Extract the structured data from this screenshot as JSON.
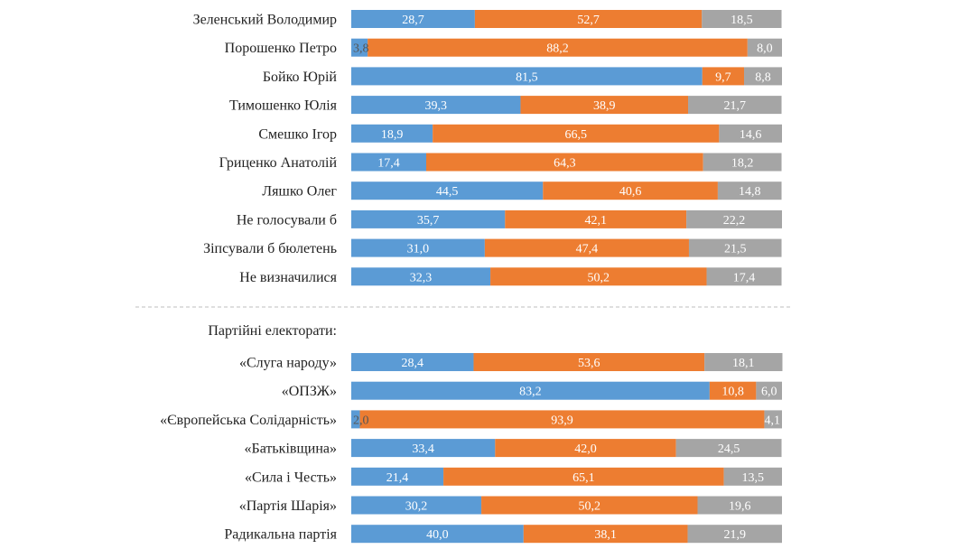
{
  "colors": {
    "series_1": "#5b9bd5",
    "series_2": "#ed7d31",
    "series_3": "#a5a5a5",
    "label_text": "#ffffff",
    "category_text": "#222222",
    "separator": "#bfbfbf"
  },
  "chart_data": {
    "type": "bar",
    "orientation": "horizontal",
    "stacked": true,
    "xlim": [
      0,
      100
    ],
    "grid": false,
    "legend": "none",
    "groups": [
      {
        "heading": "",
        "categories": [
          "Зеленський Володимир",
          "Порошенко Петро",
          "Бойко Юрій",
          "Тимошенко Юлія",
          "Смешко Ігор",
          "Гриценко Анатолій",
          "Ляшко Олег",
          "Не голосували б",
          "Зіпсували б бюлетень",
          "Не визначилися"
        ],
        "series": [
          {
            "values": [
              28.7,
              3.8,
              81.5,
              39.3,
              18.9,
              17.4,
              44.5,
              35.7,
              31.0,
              32.3
            ]
          },
          {
            "values": [
              52.7,
              88.2,
              9.7,
              38.9,
              66.5,
              64.3,
              40.6,
              42.1,
              47.4,
              50.2
            ]
          },
          {
            "values": [
              18.5,
              8.0,
              8.8,
              21.7,
              14.6,
              18.2,
              14.8,
              22.2,
              21.5,
              17.4
            ]
          }
        ]
      },
      {
        "heading": "Партійні електорати:",
        "categories": [
          "«Слуга народу»",
          "«ОПЗЖ»",
          "«Європейська Солідарність»",
          "«Батьківщина»",
          "«Сила і Честь»",
          "«Партія Шарія»",
          "Радикальна партія"
        ],
        "series": [
          {
            "values": [
              28.4,
              83.2,
              2.0,
              33.4,
              21.4,
              30.2,
              40.0
            ]
          },
          {
            "values": [
              53.6,
              10.8,
              93.9,
              42.0,
              65.1,
              50.2,
              38.1
            ]
          },
          {
            "values": [
              18.1,
              6.0,
              4.1,
              24.5,
              13.5,
              19.6,
              21.9
            ]
          }
        ]
      }
    ]
  }
}
